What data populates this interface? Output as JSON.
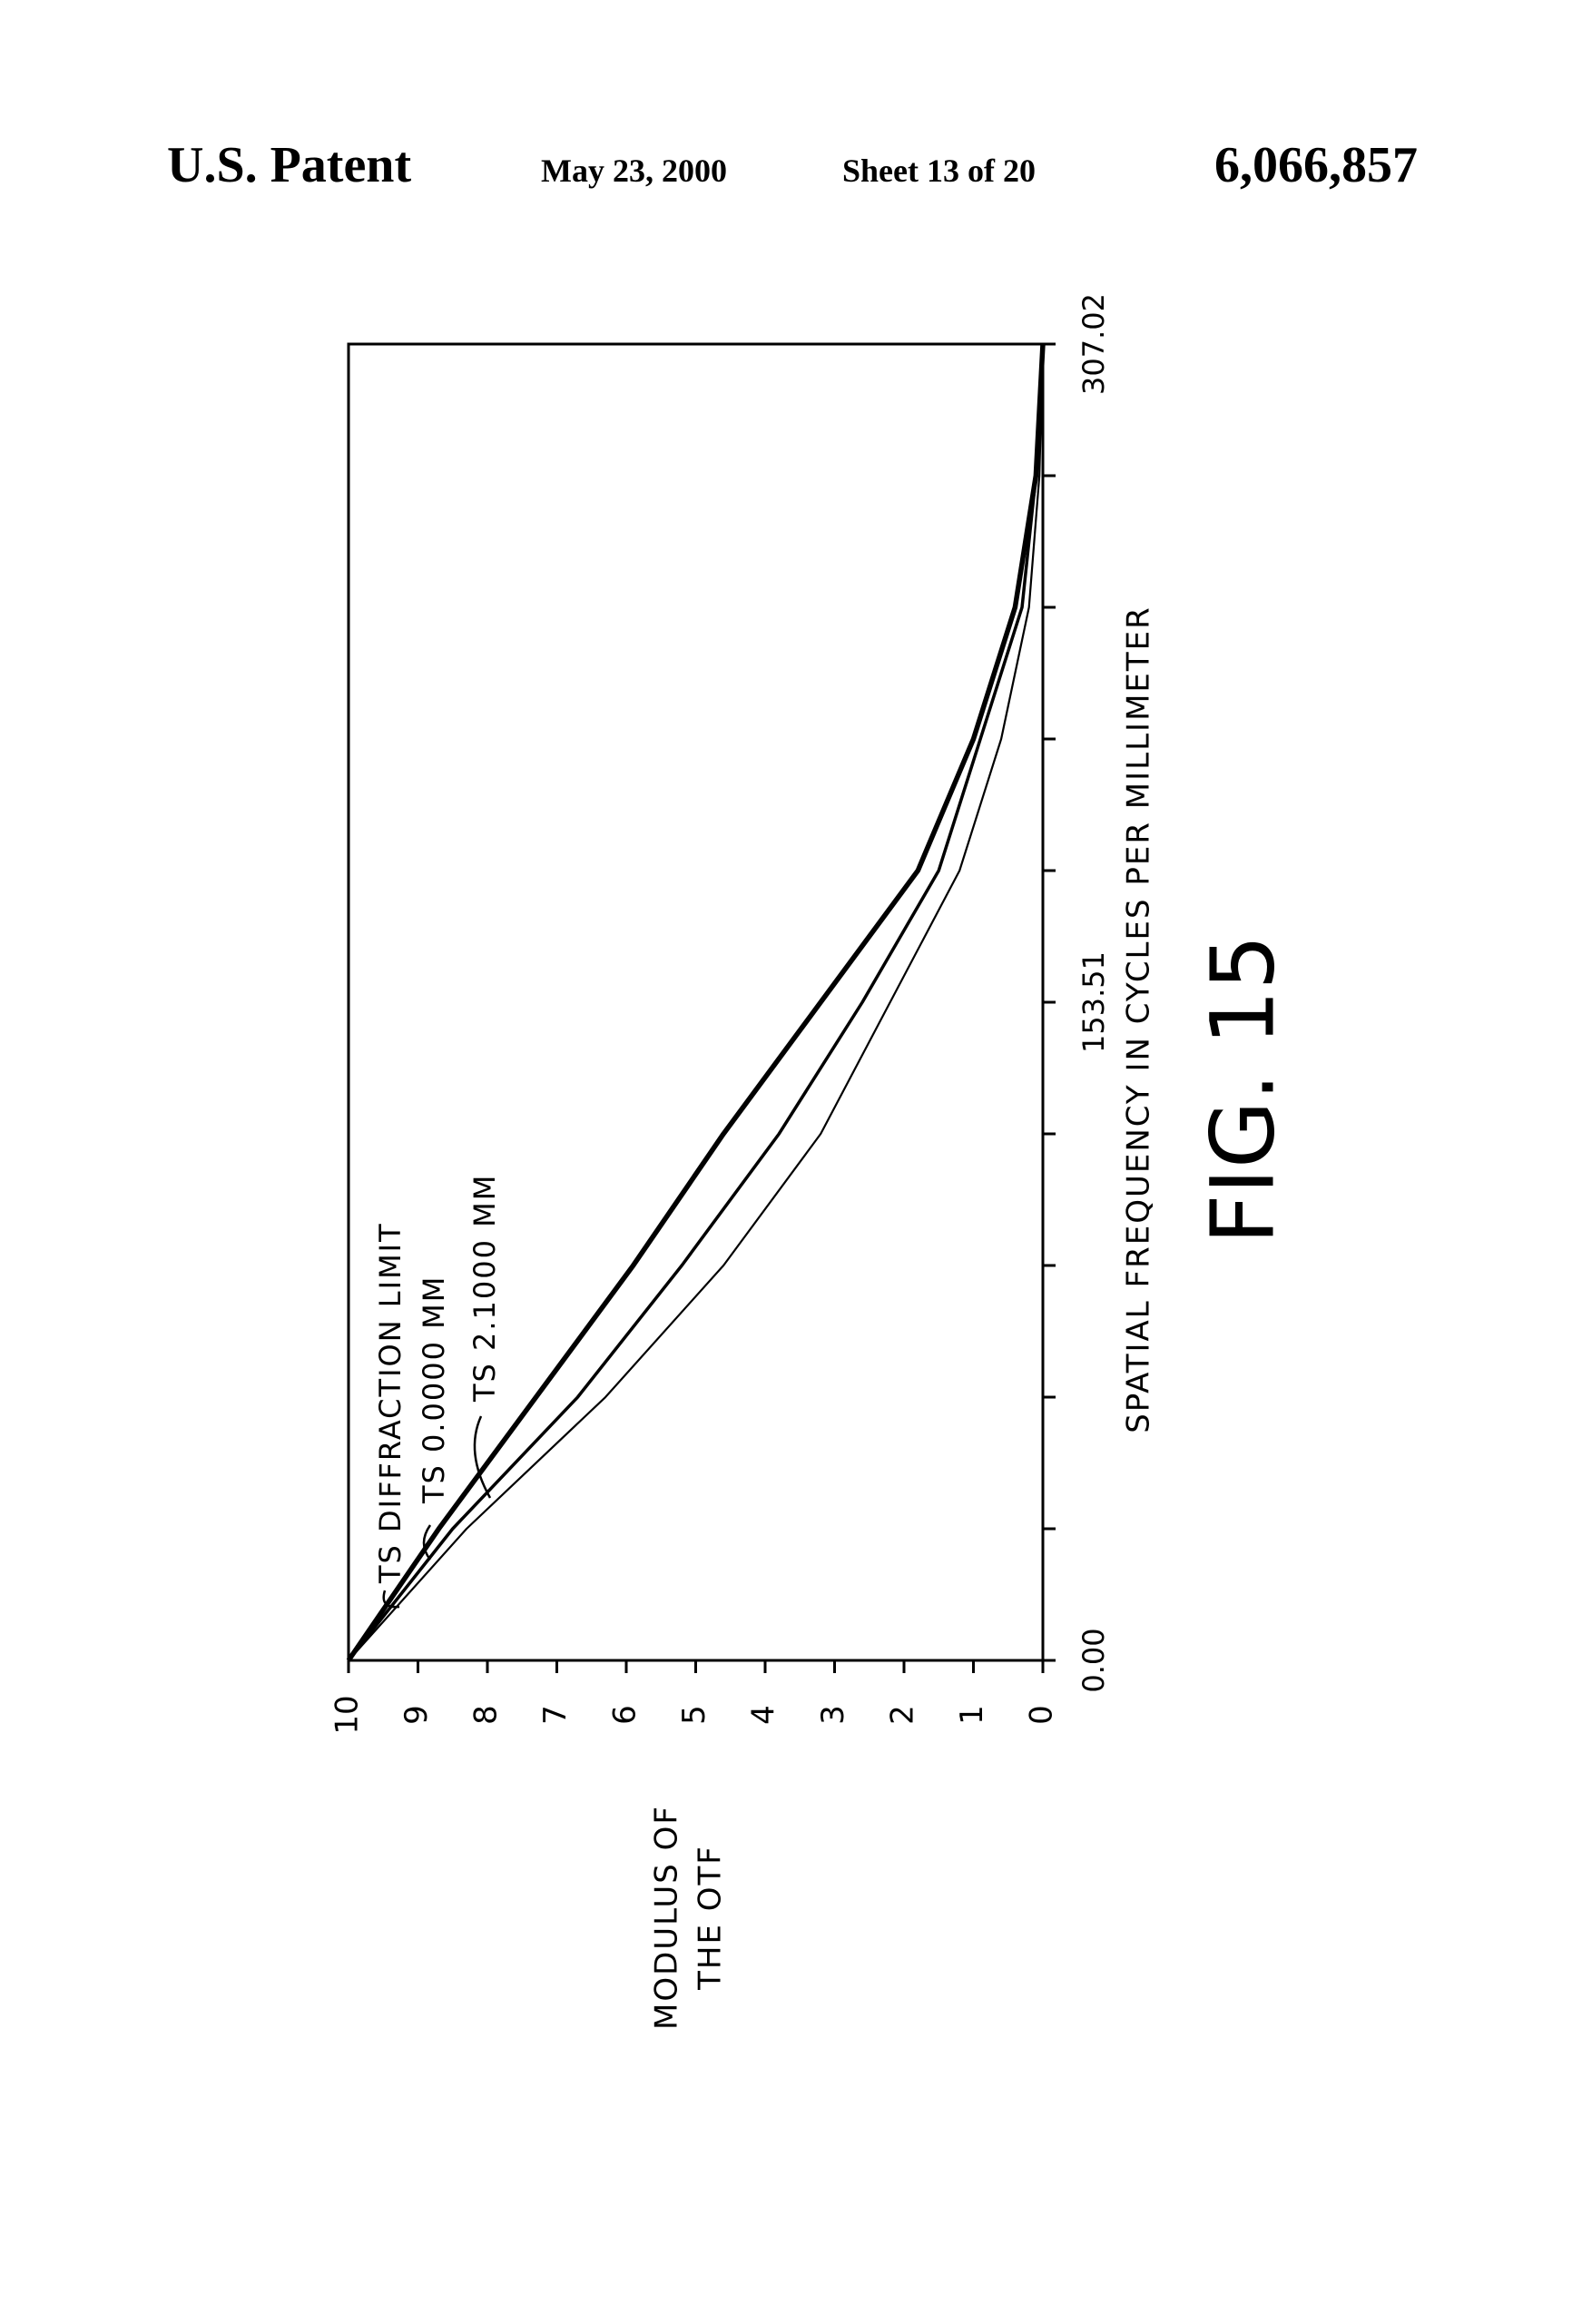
{
  "header": {
    "left": "U.S. Patent",
    "date": "May 23, 2000",
    "sheet": "Sheet 13 of 20",
    "number": "6,066,857"
  },
  "chart_data": {
    "type": "line",
    "xlabel": "SPATIAL FREQUENCY IN CYCLES PER MILLIMETER",
    "ylabel": [
      "MODULUS OF",
      "THE OTF"
    ],
    "figure_label": "FIG. 15",
    "x": [
      0,
      30.7,
      61.4,
      92.11,
      122.81,
      153.51,
      184.21,
      214.91,
      245.62,
      276.32,
      307.02
    ],
    "xlim": [
      0,
      307.02
    ],
    "xticks": [
      {
        "value": 0,
        "label": "0.00"
      },
      153.51,
      307.02
    ],
    "xminor_ticks": [
      30.7,
      61.4,
      92.11,
      122.81,
      184.21,
      214.91,
      245.62,
      276.32
    ],
    "ylim": [
      0,
      10
    ],
    "yticks": [
      0,
      1,
      2,
      3,
      4,
      5,
      6,
      7,
      8,
      9,
      10
    ],
    "grid": false,
    "series": [
      {
        "name": "TS DIFFRACTION LIMIT",
        "color": "#000000",
        "values": [
          10,
          8.7,
          7.3,
          5.9,
          4.6,
          3.2,
          1.8,
          1.0,
          0.4,
          0.1,
          0
        ]
      },
      {
        "name": "TS 0.0000 MM",
        "color": "#000000",
        "values": [
          10,
          8.5,
          6.7,
          5.2,
          3.8,
          2.6,
          1.5,
          0.9,
          0.3,
          0.1,
          0
        ]
      },
      {
        "name": "TS 2.1000 MM",
        "color": "#000000",
        "values": [
          10,
          8.3,
          6.3,
          4.6,
          3.2,
          2.2,
          1.2,
          0.6,
          0.2,
          0.05,
          0
        ]
      }
    ]
  }
}
